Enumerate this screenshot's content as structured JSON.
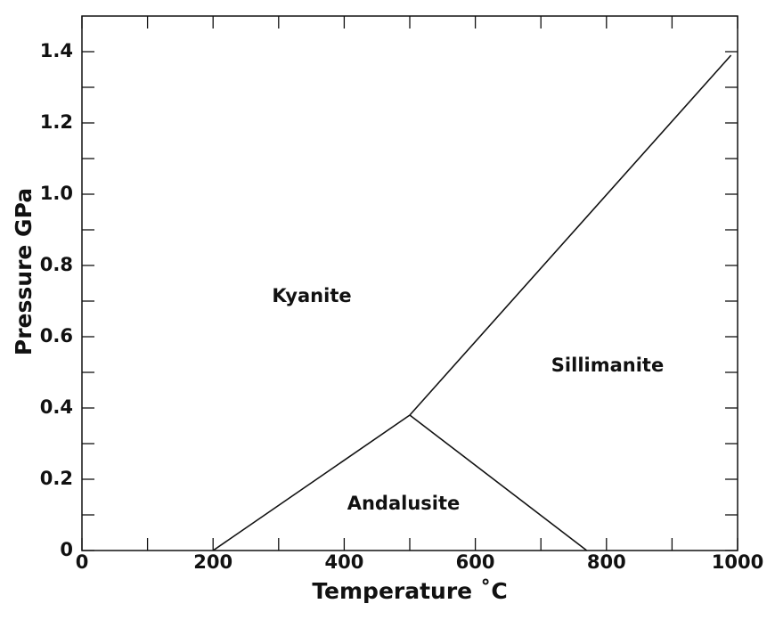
{
  "chart_data": {
    "type": "line",
    "x_label": "Temperature ˚C",
    "y_label": "Pressure  GPa",
    "xlim": [
      0,
      1000
    ],
    "ylim": [
      0,
      1.5
    ],
    "xticks": [
      0,
      200,
      400,
      600,
      800,
      1000
    ],
    "yticks": [
      0,
      0.2,
      0.4,
      0.6,
      0.8,
      {
        "value": 1,
        "label": "1.0"
      },
      1.2,
      1.4
    ],
    "xminorticks": [
      100,
      300,
      500,
      700,
      900
    ],
    "yminorticks": [
      0.1,
      0.3,
      0.5,
      0.7,
      0.9,
      1.1,
      1.3
    ],
    "series": [
      {
        "color": "#111111",
        "x": [
          200,
          500
        ],
        "values": [
          0,
          0.38
        ]
      },
      {
        "color": "#111111",
        "x": [
          500,
          990
        ],
        "values": [
          0.38,
          1.39
        ]
      },
      {
        "color": "#111111",
        "x": [
          500,
          770
        ],
        "values": [
          0.38,
          0
        ]
      }
    ],
    "annotations": [
      "Kyanite",
      "Sillimanite",
      "Andalusite"
    ]
  }
}
